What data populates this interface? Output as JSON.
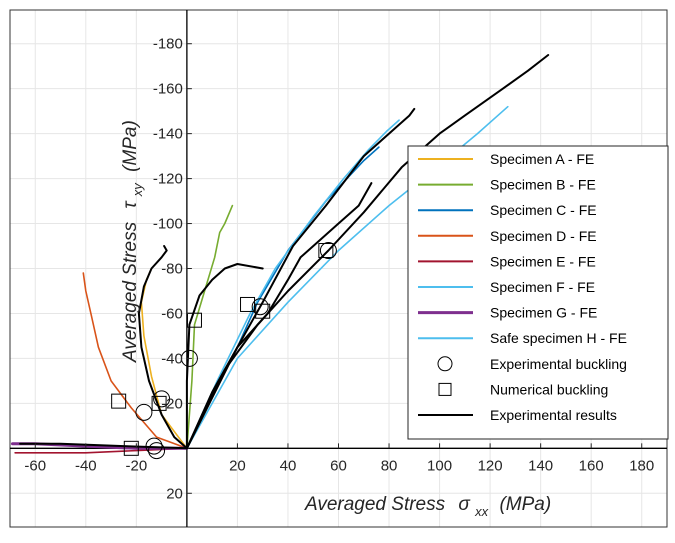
{
  "chart_data": {
    "type": "line",
    "xlabel_main": "Averaged Stress",
    "xlabel_symbol": "σ",
    "xlabel_sub": "xx",
    "xlabel_unit": "(MPa)",
    "ylabel_main": "Averaged Stress",
    "ylabel_symbol": "τ",
    "ylabel_sub": "xy",
    "ylabel_unit": "(MPa)",
    "xlim": [
      -70,
      190
    ],
    "ylim": [
      -195,
      35
    ],
    "x_ticks": [
      -60,
      -40,
      -20,
      20,
      40,
      60,
      80,
      100,
      120,
      140,
      160,
      180
    ],
    "y_ticks": [
      -180,
      -160,
      -140,
      -120,
      -100,
      -80,
      -60,
      -40,
      -20,
      20
    ],
    "grid": true,
    "legend_position": "right",
    "series": [
      {
        "name": "Specimen A - FE",
        "color": "#EDB120",
        "width": 1.6,
        "points": [
          [
            0,
            0
          ],
          [
            -10,
            -15
          ],
          [
            -14,
            -32
          ],
          [
            -17,
            -50
          ],
          [
            -18,
            -65
          ],
          [
            -16,
            -75
          ],
          [
            -14,
            -80
          ]
        ]
      },
      {
        "name": "Specimen B - FE",
        "color": "#77AC30",
        "width": 1.6,
        "points": [
          [
            0,
            0
          ],
          [
            2,
            -30
          ],
          [
            3,
            -55
          ],
          [
            7,
            -70
          ],
          [
            11,
            -85
          ],
          [
            13,
            -96
          ],
          [
            15,
            -100
          ],
          [
            18,
            -108
          ]
        ]
      },
      {
        "name": "Specimen C - FE",
        "color": "#0072BD",
        "width": 1.6,
        "points": [
          [
            0,
            0
          ],
          [
            10,
            -25
          ],
          [
            20,
            -45
          ],
          [
            28,
            -65
          ],
          [
            40,
            -88
          ],
          [
            55,
            -110
          ],
          [
            70,
            -128
          ],
          [
            76,
            -134
          ]
        ]
      },
      {
        "name": "Specimen D - FE",
        "color": "#D95319",
        "width": 1.6,
        "points": [
          [
            0,
            0
          ],
          [
            -12,
            -5
          ],
          [
            -22,
            -18
          ],
          [
            -30,
            -30
          ],
          [
            -35,
            -45
          ],
          [
            -38,
            -60
          ],
          [
            -40,
            -70
          ],
          [
            -41,
            -78
          ]
        ]
      },
      {
        "name": "Specimen E - FE",
        "color": "#A2142F",
        "width": 1.6,
        "points": [
          [
            0,
            0
          ],
          [
            -20,
            1
          ],
          [
            -40,
            2
          ],
          [
            -60,
            2
          ],
          [
            -68,
            2
          ]
        ]
      },
      {
        "name": "Specimen F - FE",
        "color": "#4DBEEE",
        "width": 1.6,
        "points": [
          [
            0,
            0
          ],
          [
            12,
            -30
          ],
          [
            25,
            -60
          ],
          [
            35,
            -80
          ],
          [
            50,
            -103
          ],
          [
            62,
            -120
          ],
          [
            72,
            -133
          ],
          [
            79,
            -141
          ],
          [
            84,
            -146
          ]
        ]
      },
      {
        "name": "Specimen G - FE",
        "color": "#7E2F8E",
        "width": 3.0,
        "points": [
          [
            0,
            0
          ],
          [
            -20,
            0
          ],
          [
            -40,
            -1
          ],
          [
            -60,
            -2
          ],
          [
            -69,
            -2
          ]
        ]
      },
      {
        "name": "Safe specimen H - FE",
        "color": "#4DBEEE",
        "width": 1.6,
        "points": [
          [
            0,
            0
          ],
          [
            20,
            -40
          ],
          [
            40,
            -65
          ],
          [
            60,
            -88
          ],
          [
            80,
            -108
          ],
          [
            100,
            -126
          ],
          [
            115,
            -140
          ],
          [
            127,
            -152
          ]
        ]
      },
      {
        "name": "Experimental results",
        "color": "#000000",
        "width": 2.0,
        "points": [
          [
            0,
            0
          ],
          [
            -5,
            -5
          ],
          [
            -10,
            -15
          ],
          [
            -15,
            -30
          ],
          [
            -18,
            -45
          ],
          [
            -19,
            -60
          ],
          [
            -17,
            -72
          ],
          [
            -14,
            -80
          ],
          [
            -10,
            -85
          ],
          [
            -8,
            -88
          ],
          [
            -9,
            -90
          ]
        ]
      },
      {
        "name": "Experimental results",
        "color": "#000000",
        "width": 2.0,
        "points": [
          [
            0,
            0
          ],
          [
            -25,
            -1
          ],
          [
            -50,
            -2
          ],
          [
            -66,
            -2
          ]
        ]
      },
      {
        "name": "Experimental results",
        "color": "#000000",
        "width": 2.0,
        "points": [
          [
            0,
            0
          ],
          [
            0,
            -30
          ],
          [
            1,
            -55
          ],
          [
            5,
            -68
          ],
          [
            10,
            -75
          ],
          [
            15,
            -80
          ],
          [
            20,
            -82
          ],
          [
            30,
            -80
          ]
        ]
      },
      {
        "name": "Experimental results",
        "color": "#000000",
        "width": 2.0,
        "points": [
          [
            0,
            0
          ],
          [
            10,
            -25
          ],
          [
            20,
            -45
          ],
          [
            30,
            -65
          ],
          [
            42,
            -90
          ],
          [
            55,
            -108
          ],
          [
            70,
            -130
          ],
          [
            82,
            -142
          ],
          [
            88,
            -148
          ],
          [
            90,
            -151
          ]
        ]
      },
      {
        "name": "Experimental results",
        "color": "#000000",
        "width": 2.0,
        "points": [
          [
            0,
            0
          ],
          [
            15,
            -35
          ],
          [
            28,
            -55
          ],
          [
            32,
            -60
          ],
          [
            40,
            -75
          ],
          [
            45,
            -85
          ],
          [
            55,
            -95
          ],
          [
            60,
            -100
          ],
          [
            68,
            -108
          ],
          [
            73,
            -118
          ]
        ]
      },
      {
        "name": "Experimental results",
        "color": "#000000",
        "width": 2.0,
        "points": [
          [
            0,
            0
          ],
          [
            20,
            -45
          ],
          [
            40,
            -70
          ],
          [
            56,
            -88
          ],
          [
            70,
            -105
          ],
          [
            85,
            -125
          ],
          [
            100,
            -140
          ],
          [
            110,
            -148
          ],
          [
            125,
            -160
          ],
          [
            135,
            -168
          ],
          [
            143,
            -175
          ]
        ]
      }
    ],
    "legend": [
      {
        "label": "Specimen A - FE",
        "kind": "line",
        "color": "#EDB120"
      },
      {
        "label": "Specimen B - FE",
        "kind": "line",
        "color": "#77AC30"
      },
      {
        "label": "Specimen C - FE",
        "kind": "line",
        "color": "#0072BD"
      },
      {
        "label": "Specimen D - FE",
        "kind": "line",
        "color": "#D95319"
      },
      {
        "label": "Specimen E - FE",
        "kind": "line",
        "color": "#A2142F"
      },
      {
        "label": "Specimen F - FE",
        "kind": "line",
        "color": "#4DBEEE"
      },
      {
        "label": "Specimen G - FE",
        "kind": "line-thick",
        "color": "#7E2F8E"
      },
      {
        "label": "Safe specimen H - FE",
        "kind": "line",
        "color": "#4DBEEE"
      },
      {
        "label": "Experimental buckling",
        "kind": "circle",
        "color": "#000000"
      },
      {
        "label": "Numerical buckling",
        "kind": "square",
        "color": "#000000"
      },
      {
        "label": "Experimental results",
        "kind": "line",
        "color": "#000000"
      }
    ],
    "experimental_buckling": [
      [
        -12,
        1
      ],
      [
        -13,
        -1
      ],
      [
        -17,
        -16
      ],
      [
        -10,
        -22
      ],
      [
        1,
        -40
      ],
      [
        29,
        -63
      ],
      [
        56,
        -88
      ]
    ],
    "numerical_buckling": [
      [
        -22,
        0
      ],
      [
        -27,
        -21
      ],
      [
        -11,
        -20
      ],
      [
        3,
        -57
      ],
      [
        24,
        -64
      ],
      [
        30,
        -61
      ],
      [
        55,
        -88
      ]
    ]
  }
}
